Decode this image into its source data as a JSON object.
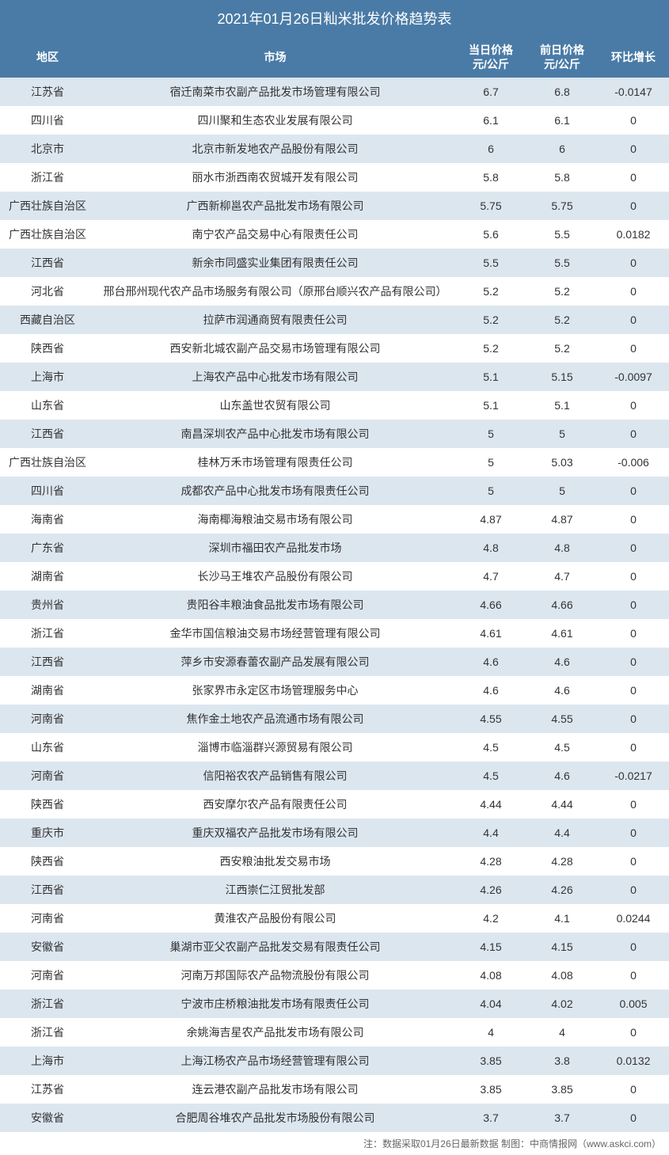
{
  "title": "2021年01月26日籼米批发价格趋势表",
  "columns": {
    "region": "地区",
    "market": "市场",
    "price_today_l1": "当日价格",
    "price_today_l2": "元/公斤",
    "price_yesterday_l1": "前日价格",
    "price_yesterday_l2": "元/公斤",
    "change": "环比增长"
  },
  "colors": {
    "header_bg": "#4a7ba6",
    "header_text": "#ffffff",
    "row_odd_bg": "#dce6ef",
    "row_even_bg": "#ffffff",
    "text_color": "#333333",
    "footer_color": "#666666"
  },
  "col_widths": {
    "region": 120,
    "price1": 90,
    "price2": 90,
    "change": 90
  },
  "font_sizes": {
    "title": 18,
    "header": 14,
    "data": 14,
    "footer": 12
  },
  "rows": [
    {
      "region": "江苏省",
      "market": "宿迁南菜市农副产品批发市场管理有限公司",
      "p1": "6.7",
      "p2": "6.8",
      "chg": "-0.0147"
    },
    {
      "region": "四川省",
      "market": "四川聚和生态农业发展有限公司",
      "p1": "6.1",
      "p2": "6.1",
      "chg": "0"
    },
    {
      "region": "北京市",
      "market": "北京市新发地农产品股份有限公司",
      "p1": "6",
      "p2": "6",
      "chg": "0"
    },
    {
      "region": "浙江省",
      "market": "丽水市浙西南农贸城开发有限公司",
      "p1": "5.8",
      "p2": "5.8",
      "chg": "0"
    },
    {
      "region": "广西壮族自治区",
      "market": "广西新柳邕农产品批发市场有限公司",
      "p1": "5.75",
      "p2": "5.75",
      "chg": "0"
    },
    {
      "region": "广西壮族自治区",
      "market": "南宁农产品交易中心有限责任公司",
      "p1": "5.6",
      "p2": "5.5",
      "chg": "0.0182"
    },
    {
      "region": "江西省",
      "market": "新余市同盛实业集团有限责任公司",
      "p1": "5.5",
      "p2": "5.5",
      "chg": "0"
    },
    {
      "region": "河北省",
      "market": "邢台邢州现代农产品市场服务有限公司（原邢台顺兴农产品有限公司）",
      "p1": "5.2",
      "p2": "5.2",
      "chg": "0"
    },
    {
      "region": "西藏自治区",
      "market": "拉萨市润通商贸有限责任公司",
      "p1": "5.2",
      "p2": "5.2",
      "chg": "0"
    },
    {
      "region": "陕西省",
      "market": "西安新北城农副产品交易市场管理有限公司",
      "p1": "5.2",
      "p2": "5.2",
      "chg": "0"
    },
    {
      "region": "上海市",
      "market": "上海农产品中心批发市场有限公司",
      "p1": "5.1",
      "p2": "5.15",
      "chg": "-0.0097"
    },
    {
      "region": "山东省",
      "market": "山东盖世农贸有限公司",
      "p1": "5.1",
      "p2": "5.1",
      "chg": "0"
    },
    {
      "region": "江西省",
      "market": "南昌深圳农产品中心批发市场有限公司",
      "p1": "5",
      "p2": "5",
      "chg": "0"
    },
    {
      "region": "广西壮族自治区",
      "market": "桂林万禾市场管理有限责任公司",
      "p1": "5",
      "p2": "5.03",
      "chg": "-0.006"
    },
    {
      "region": "四川省",
      "market": "成都农产品中心批发市场有限责任公司",
      "p1": "5",
      "p2": "5",
      "chg": "0"
    },
    {
      "region": "海南省",
      "market": "海南椰海粮油交易市场有限公司",
      "p1": "4.87",
      "p2": "4.87",
      "chg": "0"
    },
    {
      "region": "广东省",
      "market": "深圳市福田农产品批发市场",
      "p1": "4.8",
      "p2": "4.8",
      "chg": "0"
    },
    {
      "region": "湖南省",
      "market": "长沙马王堆农产品股份有限公司",
      "p1": "4.7",
      "p2": "4.7",
      "chg": "0"
    },
    {
      "region": "贵州省",
      "market": "贵阳谷丰粮油食品批发市场有限公司",
      "p1": "4.66",
      "p2": "4.66",
      "chg": "0"
    },
    {
      "region": "浙江省",
      "market": "金华市国信粮油交易市场经营管理有限公司",
      "p1": "4.61",
      "p2": "4.61",
      "chg": "0"
    },
    {
      "region": "江西省",
      "market": "萍乡市安源春蕾农副产品发展有限公司",
      "p1": "4.6",
      "p2": "4.6",
      "chg": "0"
    },
    {
      "region": "湖南省",
      "market": "张家界市永定区市场管理服务中心",
      "p1": "4.6",
      "p2": "4.6",
      "chg": "0"
    },
    {
      "region": "河南省",
      "market": "焦作金土地农产品流通市场有限公司",
      "p1": "4.55",
      "p2": "4.55",
      "chg": "0"
    },
    {
      "region": "山东省",
      "market": "淄博市临淄群兴源贸易有限公司",
      "p1": "4.5",
      "p2": "4.5",
      "chg": "0"
    },
    {
      "region": "河南省",
      "market": "信阳裕农农产品销售有限公司",
      "p1": "4.5",
      "p2": "4.6",
      "chg": "-0.0217"
    },
    {
      "region": "陕西省",
      "market": "西安摩尔农产品有限责任公司",
      "p1": "4.44",
      "p2": "4.44",
      "chg": "0"
    },
    {
      "region": "重庆市",
      "market": "重庆双福农产品批发市场有限公司",
      "p1": "4.4",
      "p2": "4.4",
      "chg": "0"
    },
    {
      "region": "陕西省",
      "market": "西安粮油批发交易市场",
      "p1": "4.28",
      "p2": "4.28",
      "chg": "0"
    },
    {
      "region": "江西省",
      "market": "江西崇仁江贸批发部",
      "p1": "4.26",
      "p2": "4.26",
      "chg": "0"
    },
    {
      "region": "河南省",
      "market": "黄淮农产品股份有限公司",
      "p1": "4.2",
      "p2": "4.1",
      "chg": "0.0244"
    },
    {
      "region": "安徽省",
      "market": "巢湖市亚父农副产品批发交易有限责任公司",
      "p1": "4.15",
      "p2": "4.15",
      "chg": "0"
    },
    {
      "region": "河南省",
      "market": "河南万邦国际农产品物流股份有限公司",
      "p1": "4.08",
      "p2": "4.08",
      "chg": "0"
    },
    {
      "region": "浙江省",
      "market": "宁波市庄桥粮油批发市场有限责任公司",
      "p1": "4.04",
      "p2": "4.02",
      "chg": "0.005"
    },
    {
      "region": "浙江省",
      "market": "余姚海吉星农产品批发市场有限公司",
      "p1": "4",
      "p2": "4",
      "chg": "0"
    },
    {
      "region": "上海市",
      "market": "上海江杨农产品市场经营管理有限公司",
      "p1": "3.85",
      "p2": "3.8",
      "chg": "0.0132"
    },
    {
      "region": "江苏省",
      "market": "连云港农副产品批发市场有限公司",
      "p1": "3.85",
      "p2": "3.85",
      "chg": "0"
    },
    {
      "region": "安徽省",
      "market": "合肥周谷堆农产品批发市场股份有限公司",
      "p1": "3.7",
      "p2": "3.7",
      "chg": "0"
    }
  ],
  "footer": "注：数据采取01月26日最新数据     制图：中商情报网（www.askci.com）"
}
